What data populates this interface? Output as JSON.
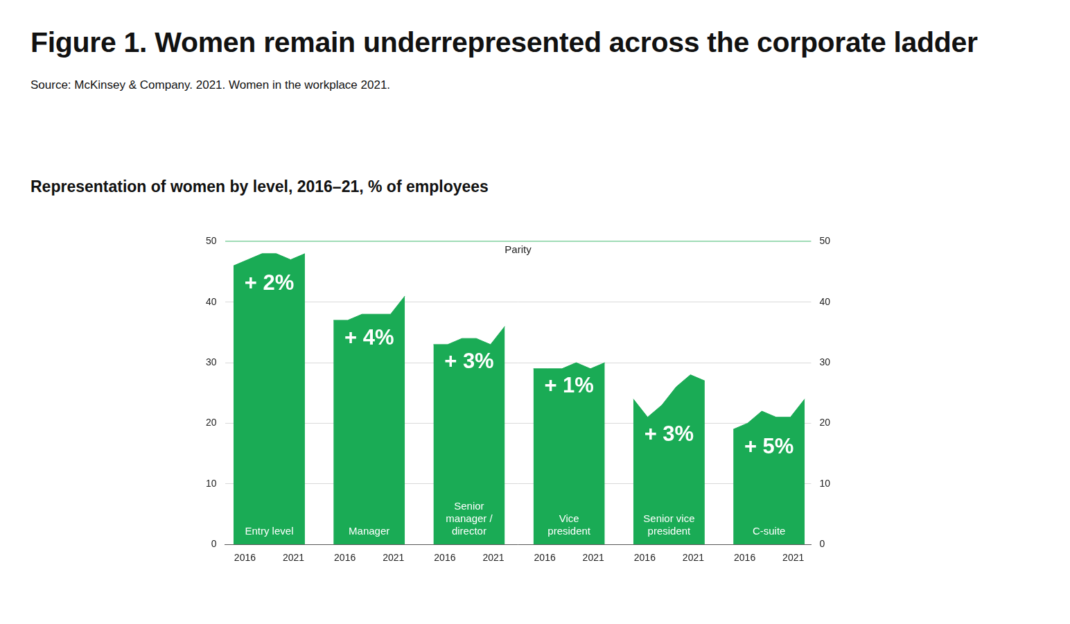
{
  "title": "Figure 1. Women remain underrepresented across the corporate ladder",
  "source": "Source: McKinsey & Company. 2021. Women in the workplace 2021.",
  "chart_data": {
    "type": "area",
    "title": "Representation of women by level, 2016–21, % of employees",
    "x": [
      2016,
      2017,
      2018,
      2019,
      2020,
      2021
    ],
    "xticks": [
      2016,
      2021
    ],
    "series": [
      {
        "name": "Entry level",
        "values": [
          46,
          47,
          48,
          48,
          47,
          48
        ],
        "annotation": "+ 2%"
      },
      {
        "name": "Manager",
        "values": [
          37,
          37,
          38,
          38,
          38,
          41
        ],
        "annotation": "+ 4%"
      },
      {
        "name": "Senior manager / director",
        "values": [
          33,
          33,
          34,
          34,
          33,
          36
        ],
        "annotation": "+ 3%"
      },
      {
        "name": "Vice president",
        "values": [
          29,
          29,
          29,
          30,
          29,
          30
        ],
        "annotation": "+ 1%"
      },
      {
        "name": "Senior vice president",
        "values": [
          24,
          21,
          23,
          26,
          28,
          27
        ],
        "annotation": "+ 3%"
      },
      {
        "name": "C-suite",
        "values": [
          19,
          20,
          22,
          21,
          21,
          24
        ],
        "annotation": "+ 5%"
      }
    ],
    "color": "#1aab55",
    "ylim": [
      0,
      50
    ],
    "yticks": [
      0,
      10,
      20,
      30,
      40,
      50
    ],
    "y2lim": [
      0,
      50
    ],
    "y2ticks": [
      0,
      10,
      20,
      30,
      40,
      50
    ],
    "grid": true,
    "annotations": [
      {
        "text": "Parity",
        "y": 50
      }
    ]
  }
}
